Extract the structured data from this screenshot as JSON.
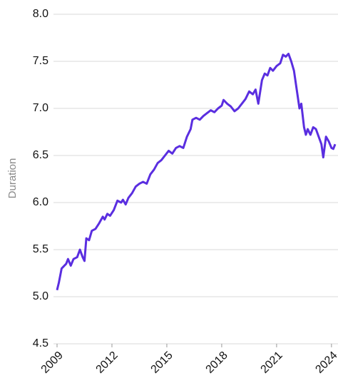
{
  "chart_data": {
    "type": "line",
    "ylabel": "Duration",
    "x": [
      2009.0,
      2009.1,
      2009.25,
      2009.5,
      2009.6,
      2009.75,
      2009.9,
      2010.1,
      2010.25,
      2010.4,
      2010.5,
      2010.6,
      2010.75,
      2010.9,
      2011.1,
      2011.3,
      2011.5,
      2011.6,
      2011.75,
      2011.9,
      2012.1,
      2012.3,
      2012.5,
      2012.6,
      2012.75,
      2012.9,
      2013.1,
      2013.3,
      2013.5,
      2013.7,
      2013.9,
      2014.1,
      2014.3,
      2014.5,
      2014.7,
      2014.9,
      2015.1,
      2015.3,
      2015.5,
      2015.7,
      2015.9,
      2016.1,
      2016.3,
      2016.4,
      2016.6,
      2016.8,
      2017.0,
      2017.2,
      2017.4,
      2017.6,
      2017.8,
      2018.0,
      2018.1,
      2018.3,
      2018.5,
      2018.7,
      2018.9,
      2019.1,
      2019.3,
      2019.5,
      2019.7,
      2019.85,
      2020.0,
      2020.2,
      2020.35,
      2020.5,
      2020.65,
      2020.8,
      2021.0,
      2021.2,
      2021.35,
      2021.5,
      2021.65,
      2021.8,
      2021.95,
      2022.1,
      2022.25,
      2022.35,
      2022.5,
      2022.6,
      2022.7,
      2022.85,
      2023.0,
      2023.15,
      2023.3,
      2023.45,
      2023.55,
      2023.7,
      2023.85,
      2024.0,
      2024.1,
      2024.2
    ],
    "series": [
      {
        "name": "Duration",
        "color": "#5a2ee0",
        "values": [
          5.07,
          5.15,
          5.3,
          5.35,
          5.4,
          5.33,
          5.4,
          5.42,
          5.5,
          5.42,
          5.38,
          5.62,
          5.6,
          5.7,
          5.72,
          5.78,
          5.85,
          5.82,
          5.88,
          5.86,
          5.92,
          6.02,
          6.0,
          6.03,
          5.98,
          6.05,
          6.1,
          6.17,
          6.2,
          6.22,
          6.2,
          6.3,
          6.35,
          6.42,
          6.45,
          6.5,
          6.55,
          6.52,
          6.58,
          6.6,
          6.58,
          6.7,
          6.78,
          6.88,
          6.9,
          6.88,
          6.92,
          6.95,
          6.98,
          6.96,
          7.0,
          7.03,
          7.09,
          7.05,
          7.02,
          6.97,
          7.0,
          7.05,
          7.1,
          7.18,
          7.15,
          7.2,
          7.05,
          7.3,
          7.37,
          7.35,
          7.43,
          7.4,
          7.45,
          7.48,
          7.57,
          7.55,
          7.58,
          7.5,
          7.4,
          7.2,
          7.0,
          7.05,
          6.8,
          6.72,
          6.78,
          6.72,
          6.8,
          6.78,
          6.7,
          6.62,
          6.48,
          6.7,
          6.65,
          6.58,
          6.57,
          6.62
        ]
      }
    ],
    "xlim": [
      2009,
      2024.2
    ],
    "xticks": [
      2009,
      2012,
      2015,
      2018,
      2021,
      2024
    ],
    "ylim": [
      4.5,
      8.0
    ],
    "yticks": [
      {
        "value": 4.5,
        "label": "4.5"
      },
      {
        "value": 5.0,
        "label": "5.0"
      },
      {
        "value": 5.5,
        "label": "5.5"
      },
      {
        "value": 6.0,
        "label": "6.0"
      },
      {
        "value": 6.5,
        "label": "6.5"
      },
      {
        "value": 7.0,
        "label": "7.0"
      },
      {
        "value": 7.5,
        "label": "7.5"
      },
      {
        "value": 8.0,
        "label": "8.0"
      }
    ],
    "grid": true
  }
}
